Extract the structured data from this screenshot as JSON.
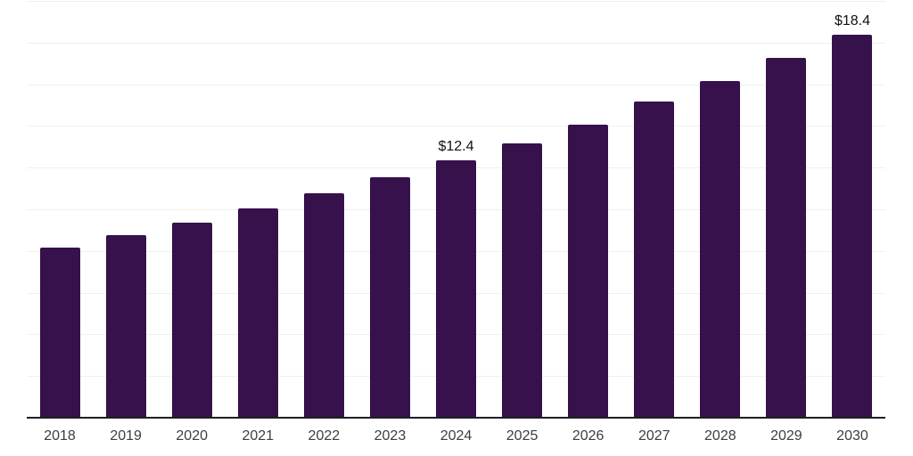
{
  "chart_data": {
    "type": "bar",
    "title": "",
    "xlabel": "",
    "ylabel": "",
    "categories": [
      "2018",
      "2019",
      "2020",
      "2021",
      "2022",
      "2023",
      "2024",
      "2025",
      "2026",
      "2027",
      "2028",
      "2029",
      "2030"
    ],
    "values": [
      8.2,
      8.8,
      9.4,
      10.1,
      10.8,
      11.6,
      12.4,
      13.2,
      14.1,
      15.2,
      16.2,
      17.3,
      18.4
    ],
    "point_labels": [
      "",
      "",
      "",
      "",
      "",
      "",
      "$12.4",
      "",
      "",
      "",
      "",
      "",
      "$18.4"
    ],
    "ylim": [
      0,
      20
    ],
    "gridline_step": 2,
    "grid": true,
    "legend": "none",
    "y_axis_labels_visible": false,
    "colors": {
      "bar": "#36114c",
      "gridline": "#f0f0f0",
      "axis_line": "#1f1f1f",
      "tick_label": "#3d3d3d",
      "data_label": "#111111",
      "background": "#ffffff"
    }
  }
}
